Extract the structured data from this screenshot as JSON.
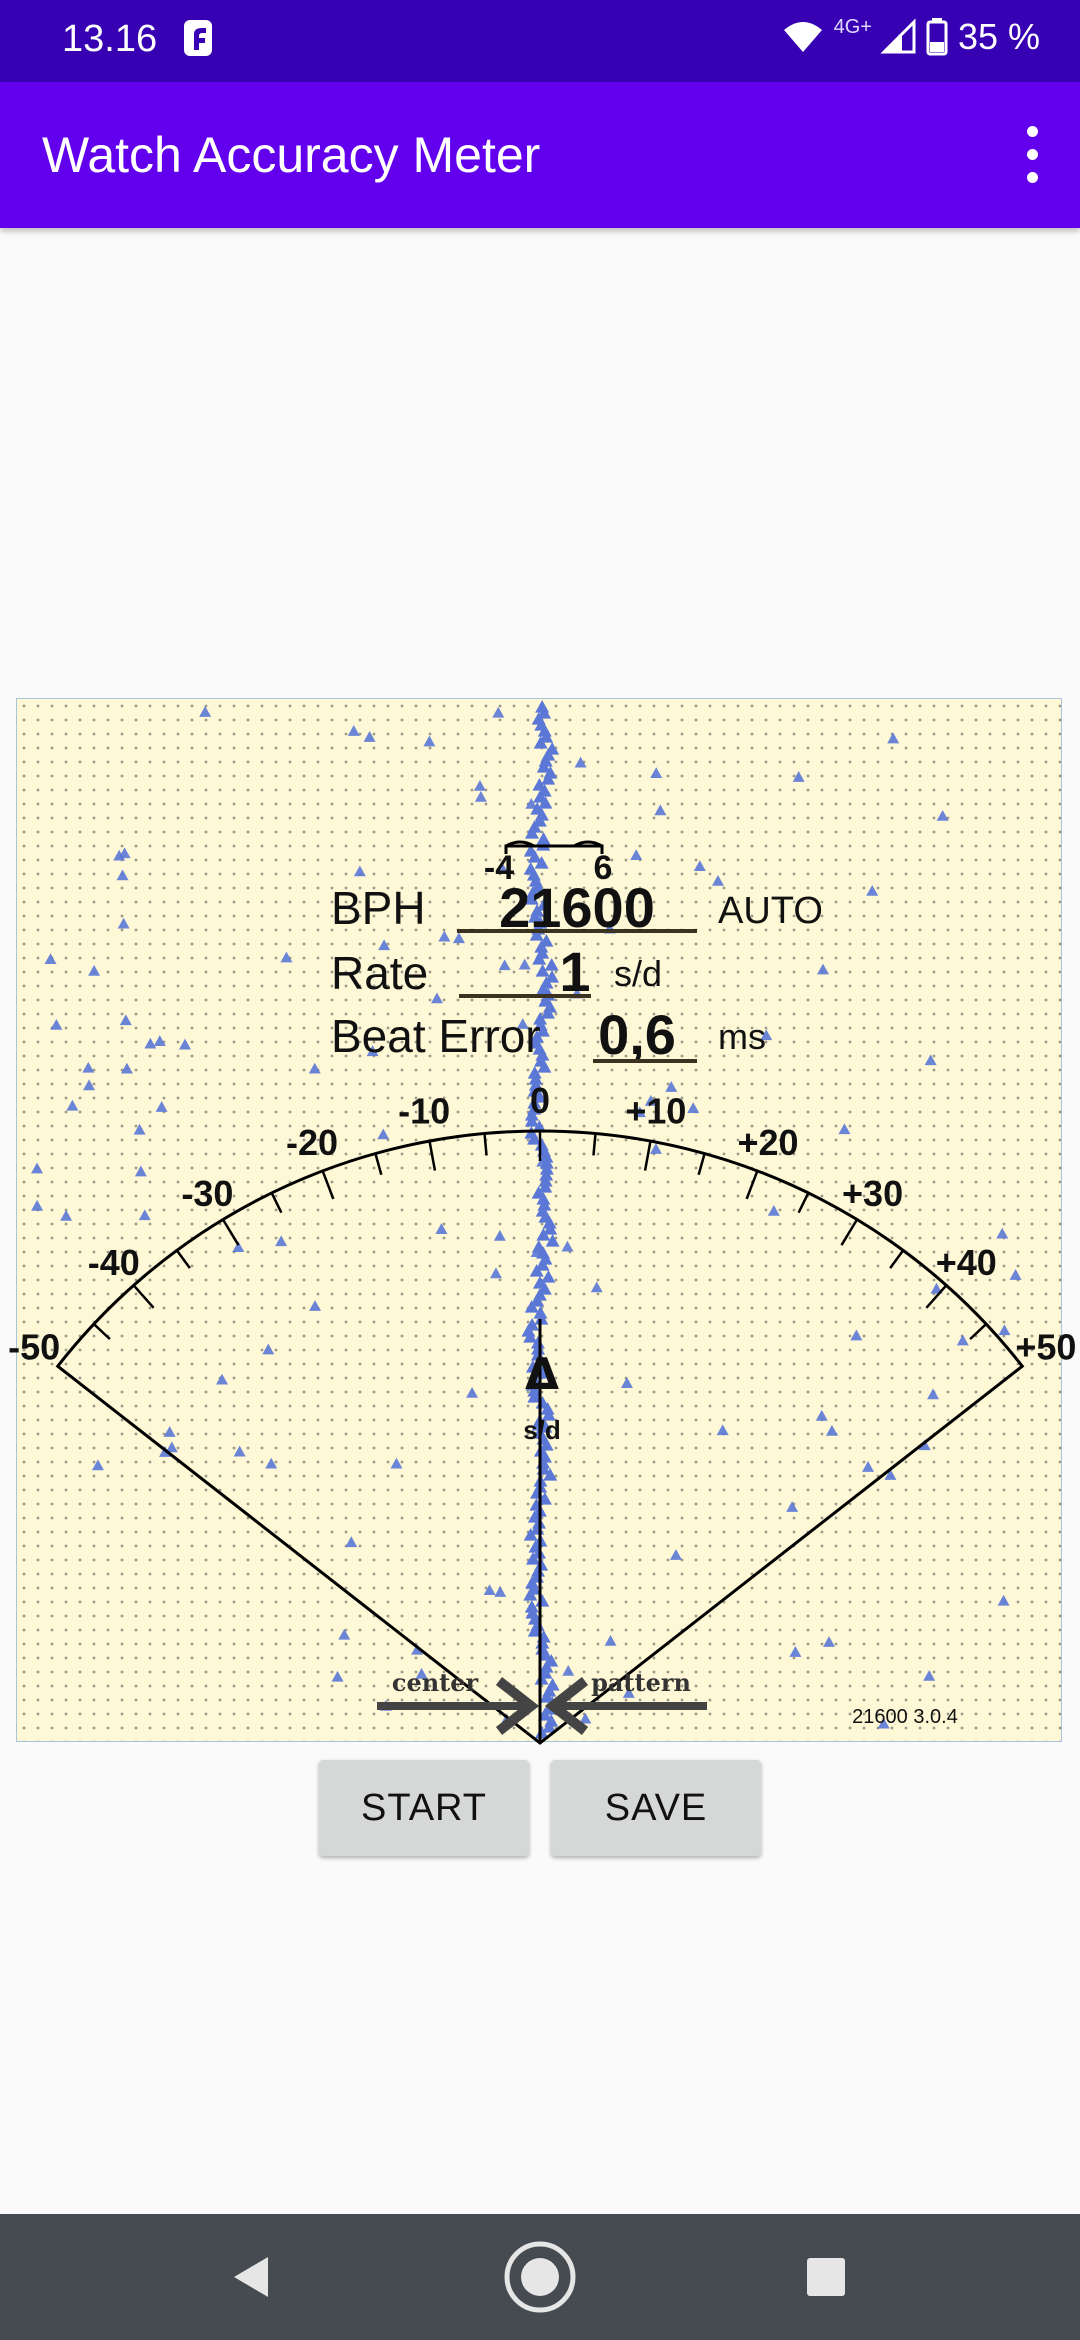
{
  "status_bar": {
    "time": "13.16",
    "network": "4G+",
    "battery": "35 %"
  },
  "app_bar": {
    "title": "Watch Accuracy Meter"
  },
  "meter": {
    "scale_labels": [
      {
        "text": "-50",
        "value": -50
      },
      {
        "text": "-40",
        "value": -40
      },
      {
        "text": "-30",
        "value": -30
      },
      {
        "text": "-20",
        "value": -20
      },
      {
        "text": "-10",
        "value": -10
      },
      {
        "text": "0",
        "value": 0
      },
      {
        "text": "+10",
        "value": 10
      },
      {
        "text": "+20",
        "value": 20
      },
      {
        "text": "+30",
        "value": 30
      },
      {
        "text": "+40",
        "value": 40
      },
      {
        "text": "+50",
        "value": 50
      }
    ],
    "tolerance_min": "-4",
    "tolerance_max": "6",
    "readout": {
      "bph_label": "BPH",
      "bph_value": "21600",
      "bph_mode": "AUTO",
      "rate_label": "Rate",
      "rate_value": "1",
      "rate_unit": "s/d",
      "beat_error_label": "Beat Error",
      "beat_error_value": "0,6",
      "beat_error_unit": "ms"
    },
    "delta_symbol": "Δ",
    "delta_unit": "s/d",
    "center_label": "center",
    "pattern_label": "pattern",
    "version_label": "21600 3.0.4"
  },
  "buttons": {
    "start": "START",
    "save": "SAVE"
  },
  "colors": {
    "status_bar": "#3700b3",
    "app_bar": "#6200ee",
    "meter_bg": "#fff8d6",
    "trace": "#5b78d6",
    "nav_bar": "#454b50"
  }
}
